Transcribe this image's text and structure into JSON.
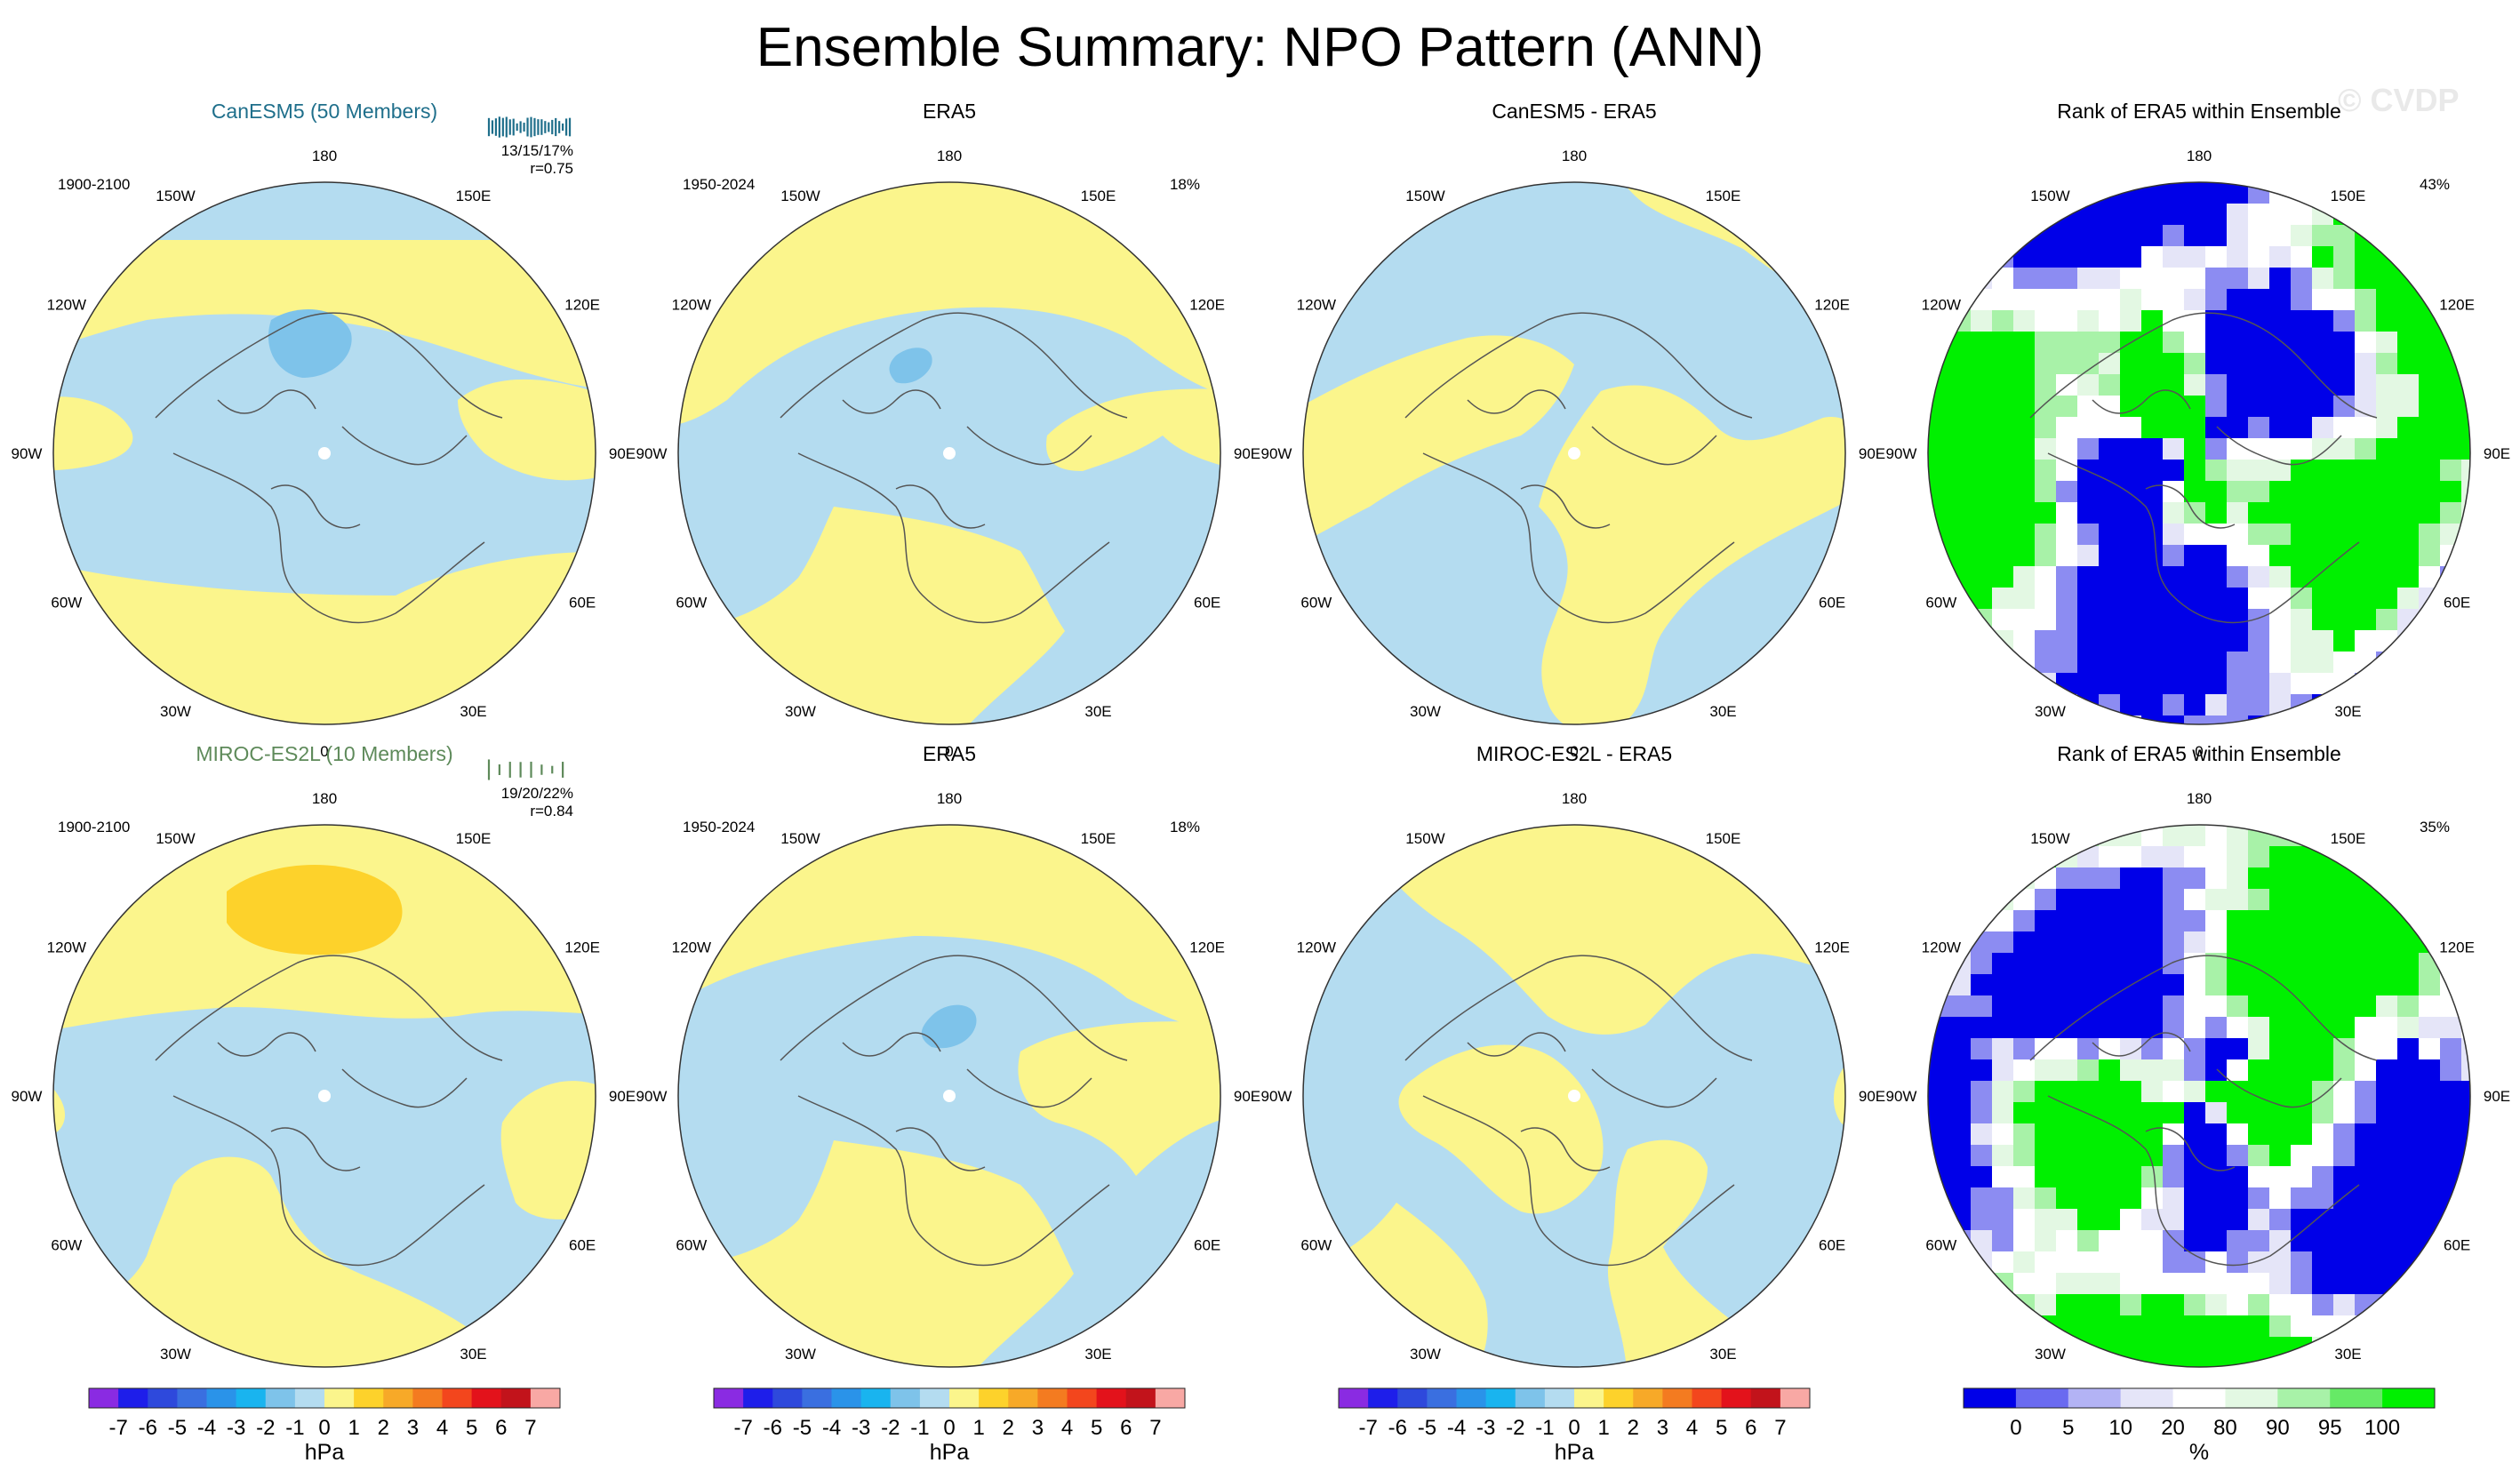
{
  "title": "Ensemble Summary: NPO Pattern (ANN)",
  "watermark": "© CVDP",
  "colors": {
    "ocean_light_blue": "#b4dcf0",
    "yellow": "#fbf58c",
    "mid_blue": "#7ec3ea",
    "dark_blue_blob": "#5fb0e6",
    "gold": "#fdd22b",
    "rank_blue": "#0000e8",
    "rank_green": "#00f000",
    "rank_white": "#ffffff"
  },
  "lon_labels": [
    "180",
    "150E",
    "120E",
    "90E",
    "60E",
    "30E",
    "0",
    "30W",
    "60W",
    "90W",
    "120W",
    "150W"
  ],
  "rows": [
    {
      "model_title": "CanESM5 (50 Members)",
      "model_title_color": "#1f6f8b",
      "model_years": "1900-2100",
      "model_stats": "13/15/17%",
      "model_r": "r=0.75",
      "obs_title": "ERA5",
      "obs_years": "1950-2024",
      "obs_pct": "18%",
      "diff_title": "CanESM5 - ERA5",
      "rank_title": "Rank of ERA5 within Ensemble",
      "rank_pct": "43%"
    },
    {
      "model_title": "MIROC-ES2L (10 Members)",
      "model_title_color": "#5e8a5a",
      "model_years": "1900-2100",
      "model_stats": "19/20/22%",
      "model_r": "r=0.84",
      "obs_title": "ERA5",
      "obs_years": "1950-2024",
      "obs_pct": "18%",
      "diff_title": "MIROC-ES2L - ERA5",
      "rank_title": "Rank of ERA5 within Ensemble",
      "rank_pct": "35%"
    }
  ],
  "chart_data": {
    "type": "heatmap",
    "projection": "north-polar-stereographic",
    "panels": [
      "CanESM5 (50 Members)",
      "ERA5",
      "CanESM5 - ERA5",
      "Rank of ERA5 within Ensemble",
      "MIROC-ES2L (10 Members)",
      "ERA5",
      "MIROC-ES2L - ERA5",
      "Rank of ERA5 within Ensemble"
    ],
    "hpa_colorbar": {
      "unit": "hPa",
      "tick_labels": [
        "-7",
        "-6",
        "-5",
        "-4",
        "-3",
        "-2",
        "-1",
        "0",
        "1",
        "2",
        "3",
        "4",
        "5",
        "6",
        "7"
      ],
      "colors": [
        "#8a2be2",
        "#1e1eea",
        "#2e49dc",
        "#3a6fe0",
        "#2a93e9",
        "#19b4ef",
        "#7ec3ea",
        "#b4dcf0",
        "#fbf58c",
        "#fdd22b",
        "#f7a928",
        "#f47b20",
        "#f3461d",
        "#e3121b",
        "#c2131b",
        "#f8a8a4"
      ]
    },
    "rank_colorbar": {
      "unit": "%",
      "tick_labels": [
        "0",
        "5",
        "10",
        "20",
        "80",
        "90",
        "95",
        "100"
      ],
      "colors": [
        "#0000e8",
        "#6a6af0",
        "#b3b3f5",
        "#e5e5f8",
        "#ffffff",
        "#e3f8e3",
        "#a8f2a8",
        "#66ea66",
        "#00f000"
      ]
    }
  }
}
